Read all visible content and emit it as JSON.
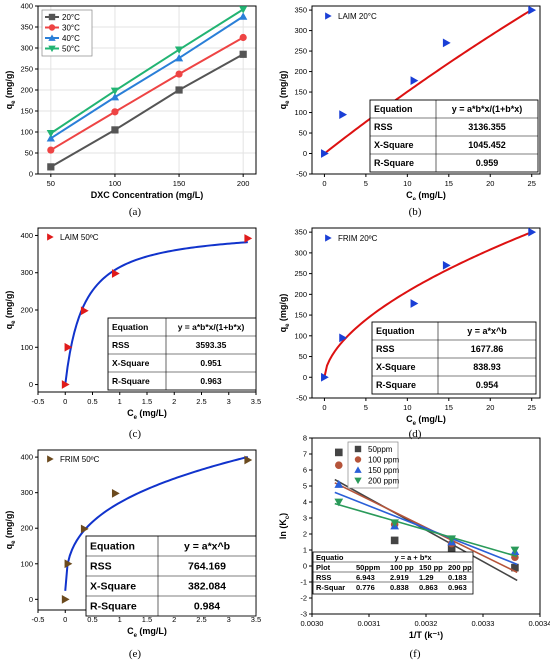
{
  "figure": {
    "captions": [
      "(a)",
      "(b)",
      "(c)",
      "(d)",
      "(e)",
      "(f)"
    ]
  },
  "chart_data": [
    {
      "id": "a",
      "type": "line",
      "xlabel": "DXC Concentration (mg/L)",
      "ylabel": "qe (mg/g)",
      "ylabel_main": "q",
      "ylabel_sub": "e",
      "ylabel_unit": " (mg/g)",
      "xlim": [
        40,
        210
      ],
      "ylim": [
        0,
        400
      ],
      "xticks": [
        50,
        100,
        150,
        200
      ],
      "yticks": [
        0,
        50,
        100,
        150,
        200,
        250,
        300,
        350,
        400
      ],
      "legend_position": "top-left",
      "x": [
        50,
        100,
        150,
        200
      ],
      "series": [
        {
          "name": "20°C",
          "values": [
            17,
            105,
            200,
            285
          ],
          "color": "#555555",
          "marker": "square"
        },
        {
          "name": "30°C",
          "values": [
            57,
            148,
            238,
            325
          ],
          "color": "#ee4444",
          "marker": "circle"
        },
        {
          "name": "40°C",
          "values": [
            85,
            183,
            276,
            375
          ],
          "color": "#2a7fd8",
          "marker": "triangle-up"
        },
        {
          "name": "50°C",
          "values": [
            97,
            198,
            296,
            392
          ],
          "color": "#22b473",
          "marker": "triangle-down"
        }
      ]
    },
    {
      "id": "b",
      "type": "scatter",
      "xlabel": "Ce (mg/L)",
      "xlabel_main": "C",
      "xlabel_sub": "e",
      "xlabel_unit": " (mg/L)",
      "ylabel_main": "q",
      "ylabel_sub": "e",
      "ylabel_unit": " (mg/g)",
      "xlim": [
        -1.5,
        26
      ],
      "ylim": [
        -50,
        360
      ],
      "xticks": [
        0,
        5,
        10,
        15,
        20,
        25
      ],
      "yticks": [
        -50,
        0,
        50,
        100,
        150,
        200,
        250,
        300,
        350
      ],
      "legend_position": "top-left",
      "series": [
        {
          "name": "LAIM 20°C",
          "marker": "triangle-right",
          "color": "#1a3fd6",
          "x": [
            0,
            2.2,
            10.8,
            14.7,
            25
          ],
          "y": [
            0,
            95,
            178,
            270,
            350
          ]
        }
      ],
      "fit": {
        "model": "langmuir",
        "params": [
          3050,
          0.0052
        ],
        "color": "#dd1111"
      },
      "stats_table": {
        "rows": [
          [
            "Equation",
            "y = a*b*x/(1+b*x)"
          ],
          [
            "RSS",
            "3136.355"
          ],
          [
            "X-Square",
            "1045.452"
          ],
          [
            "R-Square",
            "0.959"
          ]
        ]
      }
    },
    {
      "id": "c",
      "type": "scatter",
      "xlabel_main": "C",
      "xlabel_sub": "e",
      "xlabel_unit": " (mg/L)",
      "ylabel_main": "q",
      "ylabel_sub": "e",
      "ylabel_unit": " (mg/g)",
      "xlim": [
        -0.5,
        3.5
      ],
      "ylim": [
        -20,
        420
      ],
      "xticks": [
        -0.5,
        0.0,
        0.5,
        1.0,
        1.5,
        2.0,
        2.5,
        3.0,
        3.5
      ],
      "yticks": [
        0,
        100,
        200,
        300,
        400
      ],
      "legend_position": "top-left",
      "series": [
        {
          "name": "LAIM 50ºC",
          "marker": "triangle-right",
          "color": "#e01b1b",
          "x": [
            0,
            0.05,
            0.35,
            0.92,
            3.35
          ],
          "y": [
            0,
            100,
            198,
            298,
            392
          ]
        }
      ],
      "fit": {
        "model": "langmuir",
        "params": [
          420,
          3.0
        ],
        "color": "#1133cc"
      },
      "stats_table": {
        "rows": [
          [
            "Equation",
            "y = a*b*x/(1+b*x)"
          ],
          [
            "RSS",
            "3593.35"
          ],
          [
            "X-Square",
            "0.951"
          ],
          [
            "R-Square",
            "0.963"
          ]
        ]
      }
    },
    {
      "id": "d",
      "type": "scatter",
      "xlabel_main": "C",
      "xlabel_sub": "e",
      "xlabel_unit": " (mg/L)",
      "ylabel_main": "q",
      "ylabel_sub": "e",
      "ylabel_unit": " (mg/g)",
      "xlim": [
        -1.5,
        26
      ],
      "ylim": [
        -50,
        360
      ],
      "xticks": [
        0,
        5,
        10,
        15,
        20,
        25
      ],
      "yticks": [
        -50,
        0,
        50,
        100,
        150,
        200,
        250,
        300,
        350
      ],
      "legend_position": "top-left",
      "series": [
        {
          "name": "FRIM 20ºC",
          "marker": "triangle-right",
          "color": "#1a3fd6",
          "x": [
            0,
            2.2,
            10.8,
            14.7,
            25
          ],
          "y": [
            0,
            95,
            178,
            270,
            350
          ]
        }
      ],
      "fit": {
        "model": "freundlich",
        "params": [
          55,
          0.575
        ],
        "color": "#dd1111"
      },
      "stats_table": {
        "rows": [
          [
            "Equation",
            "y = a*x^b"
          ],
          [
            "RSS",
            "1677.86"
          ],
          [
            "X-Square",
            "838.93"
          ],
          [
            "R-Square",
            "0.954"
          ]
        ]
      }
    },
    {
      "id": "e",
      "type": "scatter",
      "xlabel_main": "C",
      "xlabel_sub": "e",
      "xlabel_unit": " (mg/L)",
      "ylabel_main": "q",
      "ylabel_sub": "e",
      "ylabel_unit": " (mg/g)",
      "xlim": [
        -0.5,
        3.5
      ],
      "ylim": [
        -30,
        420
      ],
      "xticks": [
        -0.5,
        0.0,
        0.5,
        1.0,
        1.5,
        2.0,
        2.5,
        3.0,
        3.5
      ],
      "yticks": [
        0,
        100,
        200,
        300,
        400
      ],
      "legend_position": "top-left",
      "series": [
        {
          "name": "FRIM 50ºC",
          "marker": "triangle-right",
          "color": "#6b4a1e",
          "x": [
            0,
            0.05,
            0.35,
            0.92,
            3.35
          ],
          "y": [
            0,
            100,
            198,
            298,
            392
          ]
        }
      ],
      "fit": {
        "model": "freundlich",
        "params": [
          272,
          0.32
        ],
        "color": "#1133cc"
      },
      "stats_table": {
        "rows": [
          [
            "Equation",
            "y = a*x^b"
          ],
          [
            "RSS",
            "764.169"
          ],
          [
            "X-Square",
            "382.084"
          ],
          [
            "R-Square",
            "0.984"
          ]
        ]
      }
    },
    {
      "id": "f",
      "type": "scatter",
      "xlabel": "1/T (k⁻¹)",
      "ylabel": "ln (Kc)",
      "ylabel_main": "ln (K",
      "ylabel_sub": "c",
      "ylabel_unit": ")",
      "xlim": [
        0.003,
        0.0034
      ],
      "ylim": [
        -3,
        8
      ],
      "xticks": [
        0.003,
        0.0031,
        0.0032,
        0.0033,
        0.0034
      ],
      "xtick_labels": [
        "0.0030",
        "0.0031",
        "0.0032",
        "0.0033",
        "0.0034"
      ],
      "yticks": [
        -3,
        -2,
        -1,
        0,
        1,
        2,
        3,
        4,
        5,
        6,
        7,
        8
      ],
      "legend_position": "top-left",
      "series": [
        {
          "name": "50ppm",
          "marker": "square",
          "color": "#444444",
          "x": [
            0.003047,
            0.003145,
            0.003245,
            0.003356
          ],
          "y": [
            7.1,
            1.6,
            1.05,
            -0.1
          ],
          "fit": [
            5.4,
            -0.9
          ]
        },
        {
          "name": "100 ppm",
          "marker": "circle",
          "color": "#b5543a",
          "x": [
            0.003047,
            0.003145,
            0.003245,
            0.003356
          ],
          "y": [
            6.3,
            2.6,
            1.4,
            0.55
          ],
          "fit": [
            5.2,
            -0.4
          ]
        },
        {
          "name": "150 ppm",
          "marker": "triangle-up",
          "color": "#2a5fd8",
          "x": [
            0.003047,
            0.003145,
            0.003245,
            0.003356
          ],
          "y": [
            5.1,
            2.5,
            1.5,
            0.9
          ],
          "fit": [
            4.6,
            0.1
          ]
        },
        {
          "name": "200 ppm",
          "marker": "triangle-down",
          "color": "#2a9a5a",
          "x": [
            0.003047,
            0.003145,
            0.003245,
            0.003356
          ],
          "y": [
            4.0,
            2.7,
            1.7,
            1.0
          ],
          "fit": [
            3.9,
            0.6
          ]
        }
      ],
      "stats_table": {
        "equation_label": "Equatio",
        "equation": "y = a + b*x",
        "header": [
          "Plot",
          "50ppm",
          "100 pp",
          "150 pp",
          "200 pp"
        ],
        "rows": [
          [
            "RSS",
            "6.943",
            "2.919",
            "1.29",
            "0.183"
          ],
          [
            "R-Squar",
            "0.776",
            "0.838",
            "0.863",
            "0.963"
          ]
        ]
      }
    }
  ]
}
